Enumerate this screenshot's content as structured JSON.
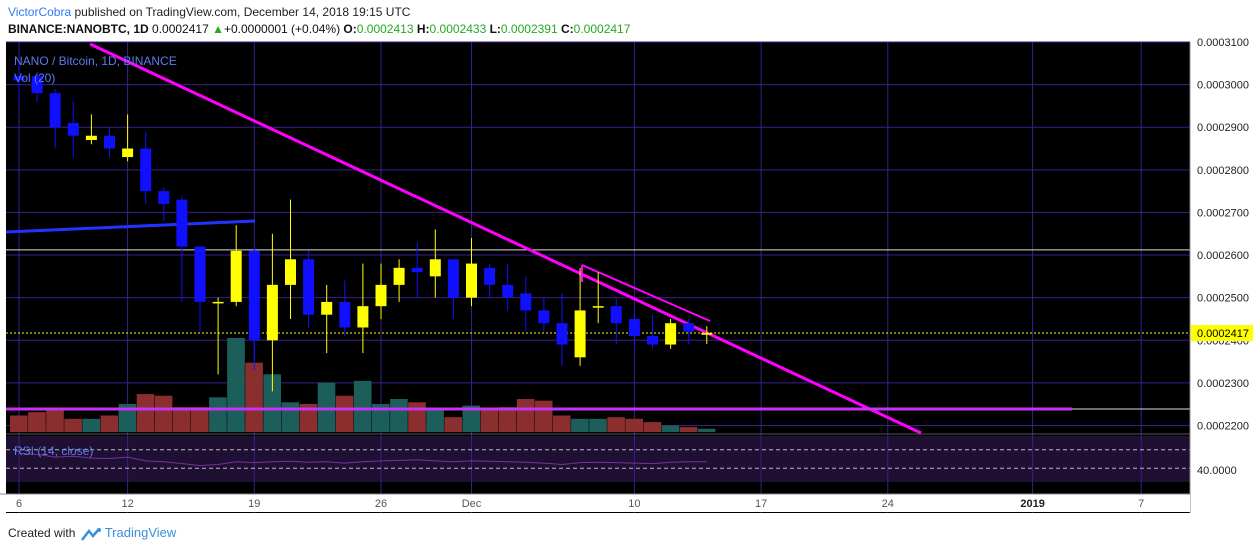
{
  "header": {
    "author": "VictorCobra",
    "published": "published on TradingView.com, December 14, 2018 19:15 UTC",
    "symbol": "BINANCE:NANOBTC, 1D",
    "last": "0.0002417",
    "arrow": "▲",
    "change": "+0.0000001 (+0.04%)",
    "o_label": "O:",
    "o": "0.0002413",
    "h_label": "H:",
    "h": "0.0002433",
    "l_label": "L:",
    "l": "0.0002391",
    "c_label": "C:",
    "c": "0.0002417"
  },
  "legend": {
    "title": "NANO / Bitcoin, 1D, BINANCE",
    "volume": "Vol (20)",
    "rsi": "RSI (14, close)",
    "rsi_label": "40.0000"
  },
  "footer": {
    "created_with": "Created with",
    "brand": "TradingView"
  },
  "colors": {
    "background": "#000000",
    "grid": "#3a1f8f",
    "up": "#ffff00",
    "down": "#1010ff",
    "vol_up": "#1b5e5a",
    "vol_down": "#8b2e2e",
    "trendline": "#ff00ff",
    "support": "#c633f5",
    "blue_line": "#2233ff",
    "price_line": "#ffff00",
    "rsi_line": "#7a2f9a",
    "rsi_bg": "#1f0f33"
  },
  "chart_data": {
    "type": "candlestick",
    "ylim": [
      0.000218,
      0.00031
    ],
    "y_ticks": [
      "0.0002200",
      "0.0002300",
      "0.0002400",
      "0.0002500",
      "0.0002600",
      "0.0002700",
      "0.0002800",
      "0.0002900",
      "0.0003000",
      "0.0003100"
    ],
    "current_price_label": "0.0002417",
    "current_price": 0.0002417,
    "horizontal_level": 0.0002612,
    "x_ticks": [
      {
        "label": "6",
        "day": 0
      },
      {
        "label": "12",
        "day": 6
      },
      {
        "label": "19",
        "day": 13
      },
      {
        "label": "26",
        "day": 20
      },
      {
        "label": "Dec",
        "day": 25
      },
      {
        "label": "10",
        "day": 34
      },
      {
        "label": "17",
        "day": 41
      },
      {
        "label": "24",
        "day": 48
      },
      {
        "label": "2019",
        "day": 56
      },
      {
        "label": "7",
        "day": 62
      }
    ],
    "candles": [
      {
        "o": 0.000302,
        "h": 0.000306,
        "l": 0.000296,
        "c": 0.000301
      },
      {
        "o": 0.000302,
        "h": 0.000303,
        "l": 0.000296,
        "c": 0.000298
      },
      {
        "o": 0.000298,
        "h": 0.000299,
        "l": 0.000285,
        "c": 0.00029
      },
      {
        "o": 0.000291,
        "h": 0.000296,
        "l": 0.000283,
        "c": 0.000288
      },
      {
        "o": 0.000287,
        "h": 0.000293,
        "l": 0.000286,
        "c": 0.000288
      },
      {
        "o": 0.000288,
        "h": 0.00029,
        "l": 0.000283,
        "c": 0.000285
      },
      {
        "o": 0.000283,
        "h": 0.000293,
        "l": 0.000282,
        "c": 0.000285
      },
      {
        "o": 0.000285,
        "h": 0.000289,
        "l": 0.000272,
        "c": 0.000275
      },
      {
        "o": 0.000275,
        "h": 0.000276,
        "l": 0.000268,
        "c": 0.000272
      },
      {
        "o": 0.000273,
        "h": 0.000274,
        "l": 0.000249,
        "c": 0.000262
      },
      {
        "o": 0.000262,
        "h": 0.000262,
        "l": 0.000242,
        "c": 0.000249
      },
      {
        "o": 0.000249,
        "h": 0.00025,
        "l": 0.000232,
        "c": 0.000249
      },
      {
        "o": 0.000249,
        "h": 0.000267,
        "l": 0.000248,
        "c": 0.000261
      },
      {
        "o": 0.000261,
        "h": 0.000262,
        "l": 0.000233,
        "c": 0.00024
      },
      {
        "o": 0.00024,
        "h": 0.000265,
        "l": 0.000228,
        "c": 0.000253
      },
      {
        "o": 0.000253,
        "h": 0.000273,
        "l": 0.000245,
        "c": 0.000259
      },
      {
        "o": 0.000259,
        "h": 0.000261,
        "l": 0.000243,
        "c": 0.000246
      },
      {
        "o": 0.000246,
        "h": 0.000253,
        "l": 0.000237,
        "c": 0.000249
      },
      {
        "o": 0.000249,
        "h": 0.000254,
        "l": 0.000241,
        "c": 0.000243
      },
      {
        "o": 0.000243,
        "h": 0.000258,
        "l": 0.000237,
        "c": 0.000248
      },
      {
        "o": 0.000248,
        "h": 0.000258,
        "l": 0.000245,
        "c": 0.000253
      },
      {
        "o": 0.000253,
        "h": 0.000259,
        "l": 0.000249,
        "c": 0.000257
      },
      {
        "o": 0.000257,
        "h": 0.000263,
        "l": 0.00025,
        "c": 0.000256
      },
      {
        "o": 0.000255,
        "h": 0.000266,
        "l": 0.00025,
        "c": 0.000259
      },
      {
        "o": 0.000259,
        "h": 0.000259,
        "l": 0.000245,
        "c": 0.00025
      },
      {
        "o": 0.00025,
        "h": 0.000264,
        "l": 0.000248,
        "c": 0.000258
      },
      {
        "o": 0.000257,
        "h": 0.000258,
        "l": 0.00025,
        "c": 0.000253
      },
      {
        "o": 0.000253,
        "h": 0.000258,
        "l": 0.000247,
        "c": 0.00025
      },
      {
        "o": 0.000251,
        "h": 0.000255,
        "l": 0.000242,
        "c": 0.000247
      },
      {
        "o": 0.000247,
        "h": 0.00025,
        "l": 0.000242,
        "c": 0.000244
      },
      {
        "o": 0.000244,
        "h": 0.000251,
        "l": 0.000234,
        "c": 0.000239
      },
      {
        "o": 0.000236,
        "h": 0.000257,
        "l": 0.000234,
        "c": 0.000247
      },
      {
        "o": 0.000248,
        "h": 0.000256,
        "l": 0.000244,
        "c": 0.000248
      },
      {
        "o": 0.000248,
        "h": 0.00025,
        "l": 0.000239,
        "c": 0.000244
      },
      {
        "o": 0.000245,
        "h": 0.000247,
        "l": 0.000238,
        "c": 0.000241
      },
      {
        "o": 0.000241,
        "h": 0.000246,
        "l": 0.000238,
        "c": 0.000239
      },
      {
        "o": 0.000239,
        "h": 0.000245,
        "l": 0.000238,
        "c": 0.000244
      },
      {
        "o": 0.000244,
        "h": 0.000245,
        "l": 0.000239,
        "c": 0.000242
      },
      {
        "o": 0.0002413,
        "h": 0.0002433,
        "l": 0.0002391,
        "c": 0.0002417
      }
    ],
    "volume": [
      10,
      12,
      14,
      8,
      8,
      10,
      17,
      23,
      22,
      15,
      15,
      21,
      57,
      42,
      35,
      18,
      17,
      30,
      22,
      31,
      17,
      20,
      18,
      14,
      9,
      16,
      14,
      15,
      20,
      19,
      10,
      8,
      8,
      9,
      8,
      6,
      4,
      3,
      2
    ],
    "rsi": [
      62,
      60,
      54,
      56,
      52,
      51,
      54,
      46,
      44,
      40,
      36,
      38,
      44,
      42,
      44,
      45,
      43,
      44,
      41,
      44,
      46,
      47,
      48,
      46,
      44,
      46,
      45,
      44,
      43,
      41,
      38,
      42,
      43,
      42,
      41,
      40,
      43,
      44,
      44
    ]
  }
}
